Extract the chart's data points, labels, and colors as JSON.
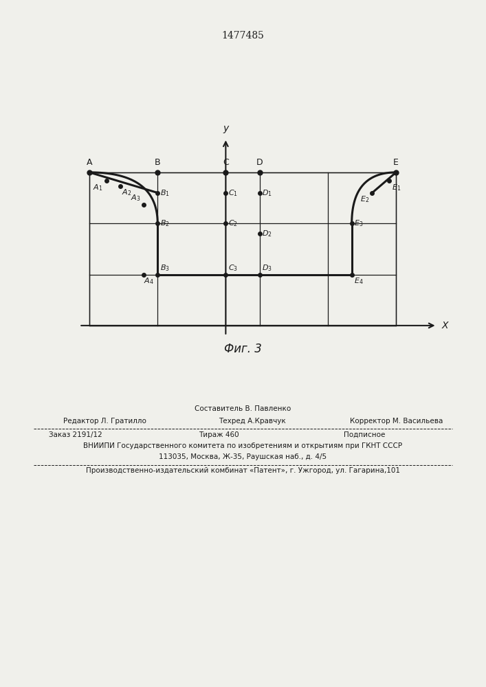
{
  "title": "1477485",
  "fig_label": "Фиг. 3",
  "bg_color": "#f0f0eb",
  "line_color": "#1a1a1a",
  "font_size_label": 9,
  "font_size_point": 8,
  "font_size_title": 10,
  "font_size_caption": 12,
  "bottom_texts": {
    "line1_center": "Составитель В. Павленко",
    "line2_left": "Редактор Л. Гратилло",
    "line2_center": "Техред А.Кравчук",
    "line2_right": "Корректор М. Васильева",
    "line3_left": "Заказ 2191/12",
    "line3_center": "Тираж 460",
    "line3_right": "Подписное",
    "line4": "ВНИИПИ Государственного комитета по изобретениям и открытиям при ГКНТ СССР",
    "line5": "113035, Москва, Ж-35, Раушская наб., д. 4/5",
    "line6": "Производственно-издательский комбинат «Патент», г. Ужгород, ул. Гагарина,101"
  }
}
